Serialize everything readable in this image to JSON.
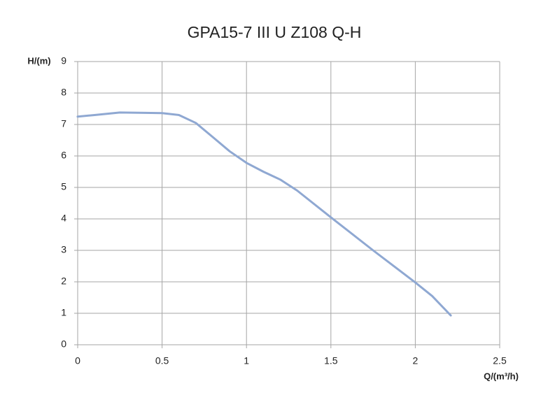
{
  "chart_data": {
    "type": "line",
    "title": "GPA15-7 III U Z108 Q-H",
    "x_label": "Q/(m³/h)",
    "y_label": "H/(m)",
    "series": [
      {
        "name": "Q-H",
        "color": "#8fa8d2",
        "x": [
          0,
          0.1,
          0.25,
          0.4,
          0.5,
          0.6,
          0.7,
          0.8,
          0.9,
          1.0,
          1.1,
          1.2,
          1.3,
          1.5,
          1.75,
          2.0,
          2.1,
          2.21
        ],
        "values": [
          7.25,
          7.3,
          7.38,
          7.37,
          7.36,
          7.3,
          7.05,
          6.6,
          6.15,
          5.78,
          5.5,
          5.25,
          4.9,
          4.05,
          3.0,
          1.98,
          1.55,
          0.93
        ]
      }
    ],
    "xlim": [
      0,
      2.5
    ],
    "xticks": [
      0,
      0.5,
      1,
      1.5,
      2,
      2.5
    ],
    "ylim": [
      0,
      9
    ],
    "yticks": [
      0,
      1,
      2,
      3,
      4,
      5,
      6,
      7,
      8,
      9
    ],
    "grid": true
  }
}
